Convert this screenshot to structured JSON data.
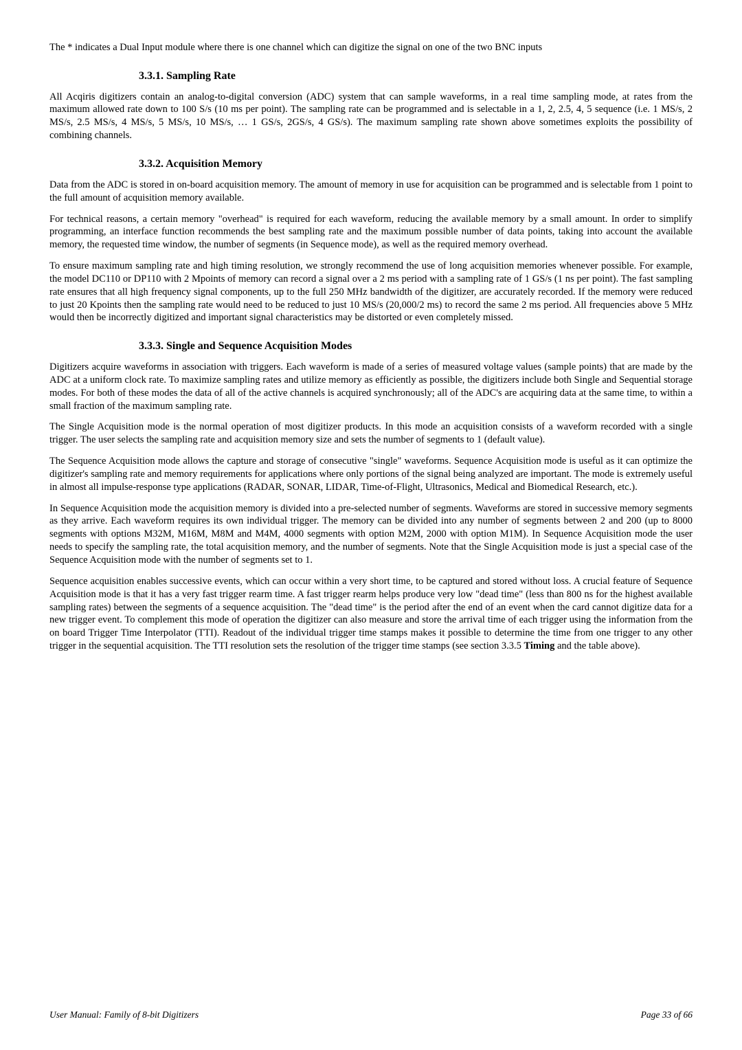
{
  "intro": {
    "p1": "The * indicates a Dual Input module where there is one channel which can digitize the signal on one of the two BNC inputs"
  },
  "s1": {
    "heading": "3.3.1.   Sampling Rate",
    "p1": "All Acqiris digitizers contain an analog-to-digital conversion (ADC) system that can sample waveforms, in a real time sampling mode, at rates from the maximum allowed rate down to 100 S/s (10 ms per point). The sampling rate can be programmed and is selectable in a 1, 2, 2.5, 4, 5 sequence (i.e. 1 MS/s, 2 MS/s, 2.5 MS/s, 4 MS/s, 5 MS/s, 10 MS/s, … 1 GS/s, 2GS/s, 4 GS/s). The maximum sampling rate shown above sometimes exploits the possibility of combining channels."
  },
  "s2": {
    "heading": "3.3.2.   Acquisition Memory",
    "p1": "Data from the ADC is stored in on-board acquisition memory. The amount of memory in use for acquisition can be programmed and is selectable from 1 point to the full amount of acquisition memory available.",
    "p2": "For technical reasons, a certain memory \"overhead\" is required for each waveform, reducing the available memory by a small amount. In order to simplify programming, an interface function recommends the best sampling rate and the maximum possible number of data points, taking into account the available memory, the requested time window, the number of segments (in Sequence mode), as well as the required memory overhead.",
    "p3": "To ensure maximum sampling rate and high timing resolution, we strongly recommend the use of long acquisition memories whenever possible. For example, the model DC110 or DP110 with 2 Mpoints of memory can record a signal over a 2 ms period with a sampling rate of 1 GS/s (1 ns per point). The fast sampling rate ensures that all high frequency signal components, up to the full 250 MHz bandwidth of the digitizer, are accurately recorded. If the memory were reduced to just 20 Kpoints then the sampling rate would need to be reduced to just 10 MS/s (20,000/2 ms) to record the same 2 ms period. All frequencies above 5 MHz would then be incorrectly digitized and important signal characteristics may be distorted or even completely missed."
  },
  "s3": {
    "heading": "3.3.3.   Single and Sequence Acquisition Modes",
    "p1": "Digitizers acquire waveforms in association with triggers. Each waveform is made of a series of measured voltage values (sample points) that are made by the ADC at a uniform clock rate. To maximize sampling rates and utilize memory as efficiently as possible, the digitizers include both Single and Sequential storage modes. For both of these modes the data of all of the active channels is acquired synchronously; all of the ADC's are acquiring data at the same time, to within a small fraction of the maximum sampling rate.",
    "p2": "The Single Acquisition mode is the normal operation of most digitizer products. In this mode an acquisition consists of a waveform recorded with a single trigger. The user selects the sampling rate and acquisition memory size and sets the number of segments to 1 (default value).",
    "p3": "The Sequence Acquisition mode allows the capture and storage of consecutive \"single\" waveforms. Sequence Acquisition mode is useful as it can optimize the digitizer's sampling rate and memory requirements for applications where only portions of the signal being analyzed are important. The mode is extremely useful in almost all impulse-response type applications (RADAR, SONAR, LIDAR, Time-of-Flight, Ultrasonics, Medical and Biomedical Research, etc.).",
    "p4": "In Sequence Acquisition mode the acquisition memory is divided into a pre-selected number of segments. Waveforms are stored in successive memory segments as they arrive. Each waveform requires its own individual trigger. The memory can be divided into any number of segments between 2 and 200 (up to 8000 segments with options M32M, M16M, M8M and M4M, 4000 segments with option M2M, 2000 with option M1M). In Sequence Acquisition mode the user needs to specify the sampling rate, the total acquisition memory, and the number of segments. Note that the Single Acquisition mode is just a special case of the Sequence Acquisition mode with the number of segments set to 1.",
    "p5_a": "Sequence acquisition enables successive events, which can occur within a very short time, to be captured and stored without loss. A crucial feature of Sequence Acquisition mode is that it has a very fast trigger rearm time. A fast trigger rearm helps produce very low \"dead time\" (less than 800 ns for the highest available sampling rates) between the segments of a sequence acquisition. The \"dead time\" is the period after the end of an event when the card cannot digitize data for a new trigger event. To complement this mode of operation the digitizer can also measure and store the arrival time of each trigger using the information from the on board Trigger Time Interpolator (TTI). Readout of the individual trigger time stamps makes it possible to determine the time from one trigger to any other trigger in the sequential acquisition. The TTI resolution sets the resolution of the trigger time stamps (see section 3.3.5 ",
    "p5_bold": "Timing",
    "p5_b": " and the table above)."
  },
  "footer": {
    "left": "User Manual: Family of 8-bit Digitizers",
    "right": "Page 33 of 66"
  }
}
